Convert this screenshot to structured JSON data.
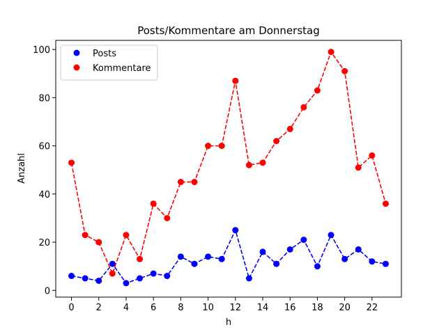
{
  "chart_data": {
    "type": "line",
    "title": "Posts/Kommentare am Donnerstag",
    "xlabel": "h",
    "ylabel": "Anzahl",
    "x": [
      0,
      1,
      2,
      3,
      4,
      5,
      6,
      7,
      8,
      9,
      10,
      11,
      12,
      13,
      14,
      15,
      16,
      17,
      18,
      19,
      20,
      21,
      22,
      23
    ],
    "xlim": [
      -1.15,
      24.15
    ],
    "ylim": [
      -2.8,
      103.8
    ],
    "xticks": [
      0,
      2,
      4,
      6,
      8,
      10,
      12,
      14,
      16,
      18,
      20,
      22
    ],
    "xtick_labels": [
      "0",
      "2",
      "4",
      "6",
      "8",
      "10",
      "12",
      "14",
      "16",
      "18",
      "20",
      "22"
    ],
    "yticks": [
      0,
      20,
      40,
      60,
      80,
      100
    ],
    "ytick_labels": [
      "0",
      "20",
      "40",
      "60",
      "80",
      "100"
    ],
    "grid": false,
    "legend_position": "top-left",
    "series": [
      {
        "name": "Posts",
        "color": "#0000ff",
        "line_style": "dashed",
        "marker": "circle",
        "values": [
          6,
          5,
          4,
          11,
          3,
          5,
          7,
          6,
          14,
          11,
          14,
          13,
          25,
          5,
          16,
          11,
          17,
          21,
          10,
          23,
          13,
          17,
          12,
          11
        ]
      },
      {
        "name": "Kommentare",
        "color": "#ff0000",
        "line_style": "dashed",
        "marker": "circle",
        "values": [
          53,
          23,
          20,
          7,
          23,
          13,
          36,
          30,
          45,
          45,
          60,
          60,
          87,
          52,
          53,
          62,
          67,
          76,
          83,
          99,
          91,
          51,
          56,
          36
        ]
      }
    ]
  }
}
